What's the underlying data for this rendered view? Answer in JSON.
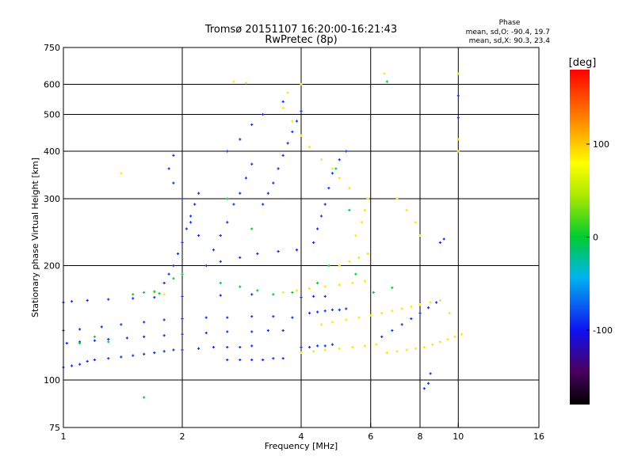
{
  "chart_data": {
    "type": "scatter",
    "title": "Tromsø 20151107 16:20:00-16:21:43",
    "subtitle": "RwPretec (8p)",
    "xlabel": "Frequency [MHz]",
    "ylabel": "Stationary phase Virtual Height [km]",
    "x_scale": "log",
    "y_scale": "log",
    "xlim": [
      1,
      16
    ],
    "ylim": [
      75,
      750
    ],
    "x_ticks": [
      1,
      2,
      4,
      6,
      8,
      10,
      16
    ],
    "y_ticks": [
      75,
      100,
      200,
      300,
      400,
      500,
      600,
      750
    ],
    "x_tick_labels": [
      "1",
      "2",
      "4",
      "6",
      "8",
      "10",
      "16"
    ],
    "y_tick_labels": [
      "75",
      "100",
      "200",
      "300",
      "400",
      "500",
      "600",
      "750"
    ],
    "grid": true,
    "x_grid": [
      2,
      4,
      6,
      8,
      10
    ],
    "y_grid": [
      100,
      200,
      300,
      400,
      500,
      600
    ],
    "stats": {
      "heading": "Phase",
      "line_o": "mean, sd,O: -90.4, 19.7",
      "line_x": "mean, sd,X: 90.3, 23.4"
    },
    "colorbar": {
      "label": "[deg]",
      "range": [
        -180,
        180
      ],
      "ticks": [
        100,
        0,
        -100
      ],
      "tick_labels": [
        "100",
        "0",
        "-100"
      ]
    },
    "colors": {
      "o_mode": "#1d2cf0",
      "x_mode": "#e8e800",
      "mid": "#00c8d0"
    },
    "series": [
      {
        "values_deg": -90,
        "points": [
          [
            1.0,
            108
          ],
          [
            1.05,
            109
          ],
          [
            1.1,
            110
          ],
          [
            1.15,
            112
          ],
          [
            1.2,
            113
          ],
          [
            1.3,
            114
          ],
          [
            1.4,
            115
          ],
          [
            1.5,
            116
          ],
          [
            1.6,
            117
          ],
          [
            1.7,
            118
          ],
          [
            1.8,
            119
          ],
          [
            1.9,
            120
          ],
          [
            2.0,
            120
          ],
          [
            2.2,
            121
          ],
          [
            2.4,
            122
          ],
          [
            2.6,
            122
          ],
          [
            2.8,
            122
          ],
          [
            3.0,
            123
          ],
          [
            1.02,
            125
          ],
          [
            1.1,
            126
          ],
          [
            1.2,
            127
          ],
          [
            1.3,
            128
          ],
          [
            1.45,
            129
          ],
          [
            1.6,
            130
          ],
          [
            1.8,
            131
          ],
          [
            2.0,
            132
          ],
          [
            2.3,
            133
          ],
          [
            2.6,
            134
          ],
          [
            3.0,
            134
          ],
          [
            3.3,
            135
          ],
          [
            3.6,
            135
          ],
          [
            1.0,
            135
          ],
          [
            1.1,
            136
          ],
          [
            1.25,
            138
          ],
          [
            1.4,
            140
          ],
          [
            1.6,
            142
          ],
          [
            1.8,
            144
          ],
          [
            2.0,
            145
          ],
          [
            2.3,
            146
          ],
          [
            2.6,
            146
          ],
          [
            3.0,
            147
          ],
          [
            3.4,
            147
          ],
          [
            3.8,
            146
          ],
          [
            1.0,
            160
          ],
          [
            1.05,
            161
          ],
          [
            1.15,
            162
          ],
          [
            1.3,
            163
          ],
          [
            1.5,
            164
          ],
          [
            1.7,
            165
          ],
          [
            2.0,
            166
          ],
          [
            2.5,
            167
          ],
          [
            3.0,
            168
          ],
          [
            2.6,
            113
          ],
          [
            2.8,
            113
          ],
          [
            3.0,
            113
          ],
          [
            3.2,
            113
          ],
          [
            3.4,
            114
          ],
          [
            3.6,
            114
          ],
          [
            4.0,
            122
          ],
          [
            4.2,
            122
          ],
          [
            4.4,
            123
          ],
          [
            4.6,
            123
          ],
          [
            4.8,
            124
          ],
          [
            4.2,
            150
          ],
          [
            4.4,
            151
          ],
          [
            4.6,
            152
          ],
          [
            4.8,
            153
          ],
          [
            5.0,
            153
          ],
          [
            5.2,
            154
          ],
          [
            4.0,
            165
          ],
          [
            4.3,
            166
          ],
          [
            4.6,
            166
          ],
          [
            1.8,
            180
          ],
          [
            1.85,
            190
          ],
          [
            1.9,
            200
          ],
          [
            1.95,
            215
          ],
          [
            2.0,
            230
          ],
          [
            2.05,
            250
          ],
          [
            2.1,
            270
          ],
          [
            2.15,
            290
          ],
          [
            2.2,
            310
          ],
          [
            1.9,
            330
          ],
          [
            1.85,
            360
          ],
          [
            1.9,
            390
          ],
          [
            2.0,
            300
          ],
          [
            2.1,
            260
          ],
          [
            2.2,
            240
          ],
          [
            2.4,
            220
          ],
          [
            2.5,
            240
          ],
          [
            2.6,
            260
          ],
          [
            2.7,
            290
          ],
          [
            2.8,
            310
          ],
          [
            2.9,
            340
          ],
          [
            3.0,
            370
          ],
          [
            2.6,
            400
          ],
          [
            2.8,
            430
          ],
          [
            3.0,
            470
          ],
          [
            3.2,
            500
          ],
          [
            3.2,
            290
          ],
          [
            3.3,
            310
          ],
          [
            3.4,
            330
          ],
          [
            3.5,
            360
          ],
          [
            3.6,
            390
          ],
          [
            3.7,
            420
          ],
          [
            3.8,
            450
          ],
          [
            3.9,
            480
          ],
          [
            4.0,
            510
          ],
          [
            3.6,
            540
          ],
          [
            4.3,
            230
          ],
          [
            4.4,
            250
          ],
          [
            4.5,
            270
          ],
          [
            4.6,
            290
          ],
          [
            4.7,
            320
          ],
          [
            4.8,
            350
          ],
          [
            5.0,
            380
          ],
          [
            5.2,
            400
          ],
          [
            2.3,
            200
          ],
          [
            2.5,
            205
          ],
          [
            2.8,
            210
          ],
          [
            3.1,
            215
          ],
          [
            3.5,
            218
          ],
          [
            3.9,
            220
          ],
          [
            6.4,
            130
          ],
          [
            6.8,
            135
          ],
          [
            7.2,
            140
          ],
          [
            7.6,
            145
          ],
          [
            8.0,
            150
          ],
          [
            8.4,
            155
          ],
          [
            8.8,
            160
          ],
          [
            8.2,
            95
          ],
          [
            8.4,
            98
          ],
          [
            8.5,
            104
          ],
          [
            9.0,
            230
          ],
          [
            9.2,
            235
          ],
          [
            10.0,
            560
          ],
          [
            10.0,
            490
          ]
        ]
      },
      {
        "values_deg": 90,
        "points": [
          [
            4.0,
            118
          ],
          [
            4.3,
            119
          ],
          [
            4.6,
            120
          ],
          [
            5.0,
            121
          ],
          [
            5.4,
            122
          ],
          [
            5.8,
            123
          ],
          [
            6.2,
            124
          ],
          [
            6.6,
            118
          ],
          [
            7.0,
            119
          ],
          [
            7.4,
            120
          ],
          [
            7.8,
            121
          ],
          [
            8.2,
            122
          ],
          [
            8.6,
            124
          ],
          [
            9.0,
            126
          ],
          [
            9.4,
            128
          ],
          [
            9.8,
            130
          ],
          [
            10.2,
            132
          ],
          [
            4.5,
            140
          ],
          [
            4.8,
            142
          ],
          [
            5.2,
            144
          ],
          [
            5.6,
            146
          ],
          [
            6.0,
            148
          ],
          [
            6.4,
            150
          ],
          [
            6.8,
            152
          ],
          [
            7.2,
            154
          ],
          [
            7.6,
            156
          ],
          [
            8.0,
            158
          ],
          [
            8.5,
            160
          ],
          [
            9.0,
            162
          ],
          [
            5.0,
            200
          ],
          [
            5.3,
            205
          ],
          [
            5.6,
            210
          ],
          [
            5.9,
            215
          ],
          [
            5.5,
            240
          ],
          [
            5.7,
            260
          ],
          [
            5.8,
            280
          ],
          [
            5.9,
            300
          ],
          [
            3.6,
            520
          ],
          [
            3.8,
            480
          ],
          [
            4.0,
            440
          ],
          [
            4.2,
            410
          ],
          [
            4.5,
            380
          ],
          [
            4.8,
            360
          ],
          [
            5.0,
            340
          ],
          [
            5.3,
            320
          ],
          [
            3.7,
            570
          ],
          [
            4.0,
            600
          ],
          [
            3.6,
            170
          ],
          [
            3.9,
            172
          ],
          [
            4.2,
            174
          ],
          [
            4.6,
            176
          ],
          [
            5.0,
            178
          ],
          [
            5.4,
            180
          ],
          [
            5.8,
            182
          ],
          [
            6.5,
            640
          ],
          [
            7.0,
            300
          ],
          [
            7.4,
            280
          ],
          [
            7.8,
            260
          ],
          [
            8.0,
            240
          ],
          [
            9.5,
            150
          ],
          [
            10.0,
            400
          ],
          [
            10.0,
            430
          ],
          [
            10.0,
            640
          ],
          [
            2.7,
            610
          ],
          [
            2.9,
            605
          ],
          [
            1.4,
            350
          ],
          [
            1.7,
            170
          ],
          [
            1.8,
            168
          ]
        ]
      },
      {
        "values_deg": 0,
        "points": [
          [
            1.6,
            170
          ],
          [
            1.7,
            171
          ],
          [
            1.75,
            169
          ],
          [
            1.5,
            168
          ],
          [
            1.9,
            185
          ],
          [
            2.0,
            190
          ],
          [
            2.5,
            180
          ],
          [
            2.8,
            176
          ],
          [
            3.1,
            172
          ],
          [
            3.4,
            168
          ],
          [
            3.8,
            170
          ],
          [
            4.4,
            180
          ],
          [
            4.7,
            200
          ],
          [
            5.5,
            190
          ],
          [
            6.1,
            170
          ],
          [
            6.8,
            175
          ],
          [
            1.2,
            130
          ],
          [
            1.3,
            126
          ],
          [
            1.1,
            125
          ],
          [
            1.6,
            90
          ],
          [
            6.6,
            610
          ],
          [
            4.9,
            360
          ],
          [
            3.0,
            250
          ],
          [
            2.6,
            300
          ],
          [
            5.3,
            280
          ]
        ]
      }
    ]
  }
}
